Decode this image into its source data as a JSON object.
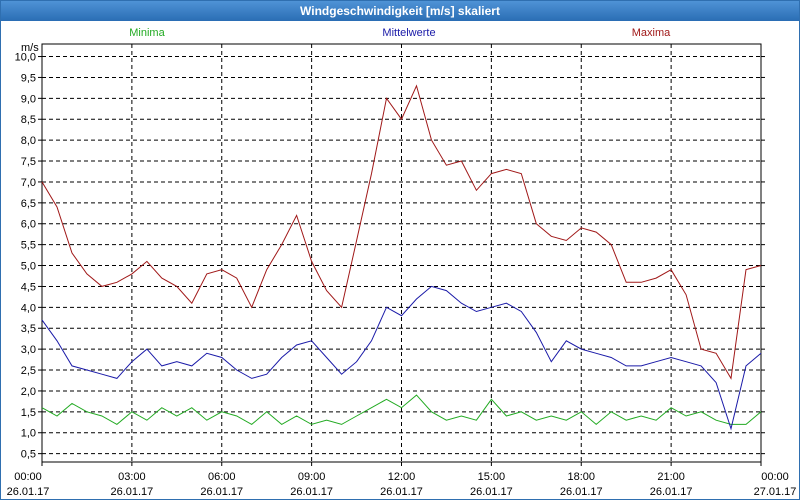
{
  "window": {
    "title": "Windgeschwindigkeit [m/s] skaliert"
  },
  "chart_data": {
    "type": "line",
    "title": "Windgeschwindigkeit [m/s] skaliert",
    "ylabel": "m/s",
    "xlabel": "",
    "ylim": [
      0.3,
      10.3
    ],
    "xlim": [
      0,
      24
    ],
    "yticks": [
      "0,5",
      "1,0",
      "1,5",
      "2,0",
      "2,5",
      "3,0",
      "3,5",
      "4,0",
      "4,5",
      "5,0",
      "5,5",
      "6,0",
      "6,5",
      "7,0",
      "7,5",
      "8,0",
      "8,5",
      "9,0",
      "9,5",
      "10,0"
    ],
    "ytick_values": [
      0.5,
      1,
      1.5,
      2,
      2.5,
      3,
      3.5,
      4,
      4.5,
      5,
      5.5,
      6,
      6.5,
      7,
      7.5,
      8,
      8.5,
      9,
      9.5,
      10
    ],
    "xticks": [
      {
        "time": "00:00",
        "date": "26.01.17"
      },
      {
        "time": "03:00",
        "date": "26.01.17"
      },
      {
        "time": "06:00",
        "date": "26.01.17"
      },
      {
        "time": "09:00",
        "date": "26.01.17"
      },
      {
        "time": "12:00",
        "date": "26.01.17"
      },
      {
        "time": "15:00",
        "date": "26.01.17"
      },
      {
        "time": "18:00",
        "date": "26.01.17"
      },
      {
        "time": "21:00",
        "date": "26.01.17"
      },
      {
        "time": "00:00",
        "date": "27.01.17"
      }
    ],
    "xtick_hours": [
      0,
      3,
      6,
      9,
      12,
      15,
      18,
      21,
      24
    ],
    "grid": true,
    "x": [
      0,
      0.5,
      1,
      1.5,
      2,
      2.5,
      3,
      3.5,
      4,
      4.5,
      5,
      5.5,
      6,
      6.5,
      7,
      7.5,
      8,
      8.5,
      9,
      9.5,
      10,
      10.5,
      11,
      11.5,
      12,
      12.5,
      13,
      13.5,
      14,
      14.5,
      15,
      15.5,
      16,
      16.5,
      17,
      17.5,
      18,
      18.5,
      19,
      19.5,
      20,
      20.5,
      21,
      21.5,
      22,
      22.5,
      23,
      23.5,
      24
    ],
    "series": [
      {
        "name": "Minima",
        "color": "#22aa22",
        "values": [
          1.6,
          1.4,
          1.7,
          1.5,
          1.4,
          1.2,
          1.5,
          1.3,
          1.6,
          1.4,
          1.6,
          1.3,
          1.5,
          1.4,
          1.2,
          1.5,
          1.2,
          1.4,
          1.2,
          1.3,
          1.2,
          1.4,
          1.6,
          1.8,
          1.6,
          1.9,
          1.5,
          1.3,
          1.4,
          1.3,
          1.8,
          1.4,
          1.5,
          1.3,
          1.4,
          1.3,
          1.5,
          1.2,
          1.5,
          1.3,
          1.4,
          1.3,
          1.6,
          1.4,
          1.5,
          1.3,
          1.2,
          1.2,
          1.5
        ]
      },
      {
        "name": "Mittelwerte",
        "color": "#1a1aa8",
        "values": [
          3.7,
          3.2,
          2.6,
          2.5,
          2.4,
          2.3,
          2.7,
          3.0,
          2.6,
          2.7,
          2.6,
          2.9,
          2.8,
          2.5,
          2.3,
          2.4,
          2.8,
          3.1,
          3.2,
          2.8,
          2.4,
          2.7,
          3.2,
          4.0,
          3.8,
          4.2,
          4.5,
          4.4,
          4.1,
          3.9,
          4.0,
          4.1,
          3.9,
          3.4,
          2.7,
          3.2,
          3.0,
          2.9,
          2.8,
          2.6,
          2.6,
          2.7,
          2.8,
          2.7,
          2.6,
          2.2,
          1.1,
          2.6,
          2.9
        ]
      },
      {
        "name": "Maxima",
        "color": "#a01818",
        "values": [
          7.0,
          6.4,
          5.3,
          4.8,
          4.5,
          4.6,
          4.8,
          5.1,
          4.7,
          4.5,
          4.1,
          4.8,
          4.9,
          4.7,
          4.0,
          4.9,
          5.5,
          6.2,
          5.1,
          4.4,
          4.0,
          5.6,
          7.2,
          9.0,
          8.5,
          9.3,
          8.0,
          7.4,
          7.5,
          6.8,
          7.2,
          7.3,
          7.2,
          6.0,
          5.7,
          5.6,
          5.9,
          5.8,
          5.5,
          4.6,
          4.6,
          4.7,
          4.9,
          4.3,
          3.0,
          2.9,
          2.3,
          4.9,
          5.0
        ]
      }
    ]
  }
}
